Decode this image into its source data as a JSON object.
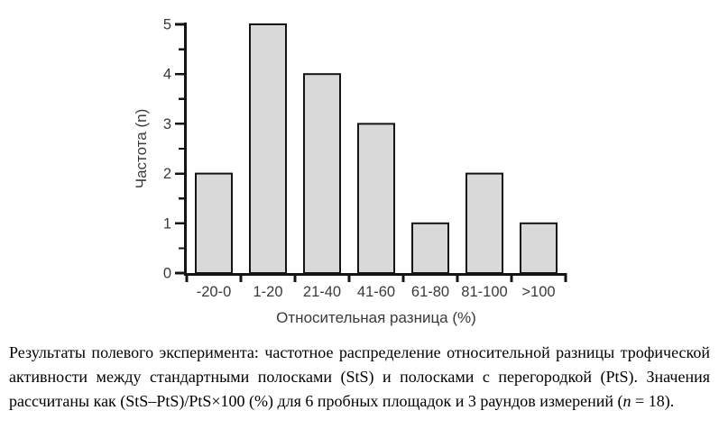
{
  "chart_data": {
    "type": "bar",
    "title": "",
    "categories": [
      "-20-0",
      "1-20",
      "21-40",
      "41-60",
      "61-80",
      "81-100",
      ">100"
    ],
    "values": [
      2,
      5,
      4,
      3,
      1,
      2,
      1
    ],
    "xlabel": "Относительная разница (%)",
    "ylabel": "Частота (n)",
    "ylim": [
      0,
      5
    ],
    "ytick_step": 1,
    "yminor_step": 0.5,
    "yticks": [
      0,
      1,
      2,
      3,
      4,
      5
    ],
    "grid": false,
    "legend": "none",
    "colors": {
      "bar_fill": "#d9d9d9",
      "bar_stroke": "#141414",
      "axis": "#141414",
      "tick_label": "#3a3a3a",
      "axis_title": "#3a3a3a"
    }
  },
  "caption": {
    "part1": "Результаты полевого эксперимента: частотное распределение относительной разницы трофической активности между стандартными полосками (StS) и полосками с перегородкой (PtS). Значения рассчитаны как (StS–PtS)/PtS×100 (%) для 6 пробных площадок и 3 раундов измерений (",
    "n_italic": "n",
    "part2": " = 18)."
  }
}
